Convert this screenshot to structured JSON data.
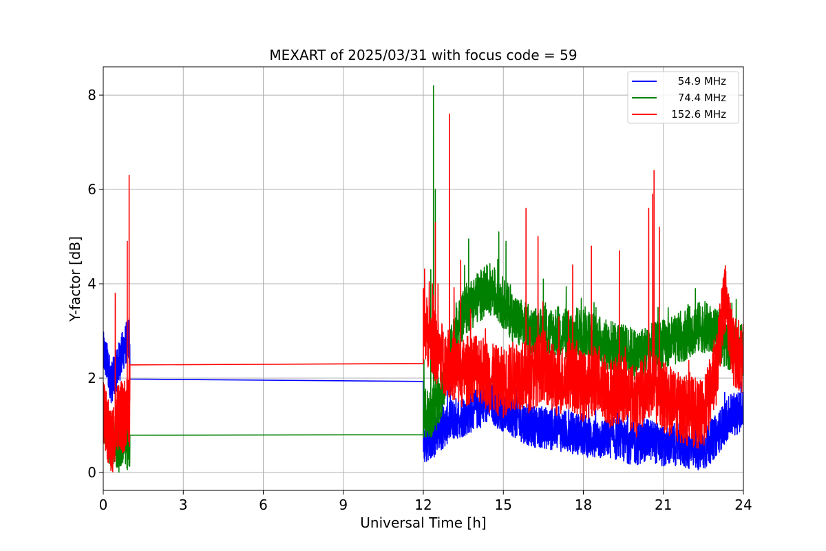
{
  "chart_data": {
    "type": "line",
    "title": "MEXART of 2025/03/31 with focus code = 59",
    "xlabel": "Universal Time [h]",
    "ylabel": "Y-factor [dB]",
    "xlim": [
      0,
      24
    ],
    "ylim": [
      -0.38,
      8.6
    ],
    "xticks": [
      0,
      3,
      6,
      9,
      12,
      15,
      18,
      21,
      24
    ],
    "yticks": [
      0,
      2,
      4,
      6,
      8
    ],
    "grid": true,
    "legend_position": "top-right",
    "series": [
      {
        "name": "54.9 MHz",
        "color": "#0000ff",
        "points": [
          [
            0.0,
            2.55
          ],
          [
            0.15,
            2.3
          ],
          [
            0.3,
            1.9
          ],
          [
            0.45,
            2.1
          ],
          [
            0.6,
            2.35
          ],
          [
            0.75,
            2.6
          ],
          [
            0.9,
            2.8
          ],
          [
            0.99,
            2.9
          ],
          [
            1.0,
            1.98
          ],
          [
            12.0,
            1.93
          ],
          [
            12.0,
            0.6
          ],
          [
            12.5,
            0.8
          ],
          [
            13.0,
            1.1
          ],
          [
            13.5,
            1.2
          ],
          [
            14.0,
            1.35
          ],
          [
            14.5,
            1.5
          ],
          [
            15.0,
            1.3
          ],
          [
            15.5,
            1.15
          ],
          [
            16.0,
            1.0
          ],
          [
            16.5,
            0.95
          ],
          [
            17.0,
            0.9
          ],
          [
            17.5,
            0.85
          ],
          [
            18.0,
            0.8
          ],
          [
            18.5,
            0.7
          ],
          [
            19.0,
            0.75
          ],
          [
            19.5,
            0.65
          ],
          [
            20.0,
            0.6
          ],
          [
            20.5,
            0.7
          ],
          [
            21.0,
            0.55
          ],
          [
            21.5,
            0.6
          ],
          [
            22.0,
            0.5
          ],
          [
            22.5,
            0.45
          ],
          [
            23.0,
            0.8
          ],
          [
            23.5,
            1.2
          ],
          [
            24.0,
            1.3
          ]
        ],
        "peaks": [
          [
            12.9,
            1.8
          ],
          [
            14.4,
            2.0
          ],
          [
            15.5,
            1.8
          ],
          [
            19.3,
            1.6
          ],
          [
            23.3,
            1.7
          ]
        ]
      },
      {
        "name": "74.4 MHz",
        "color": "#008000",
        "points": [
          [
            0.0,
            1.3
          ],
          [
            0.15,
            0.9
          ],
          [
            0.3,
            0.6
          ],
          [
            0.45,
            0.7
          ],
          [
            0.6,
            0.5
          ],
          [
            0.75,
            0.75
          ],
          [
            0.9,
            0.6
          ],
          [
            0.99,
            0.5
          ],
          [
            1.0,
            0.79
          ],
          [
            12.0,
            0.8
          ],
          [
            12.0,
            1.2
          ],
          [
            12.3,
            1.3
          ],
          [
            12.6,
            1.5
          ],
          [
            13.0,
            2.5
          ],
          [
            13.5,
            3.4
          ],
          [
            14.0,
            3.7
          ],
          [
            14.5,
            3.9
          ],
          [
            15.0,
            3.6
          ],
          [
            15.5,
            3.2
          ],
          [
            16.0,
            3.0
          ],
          [
            16.5,
            2.9
          ],
          [
            17.0,
            3.0
          ],
          [
            17.5,
            2.9
          ],
          [
            18.0,
            3.0
          ],
          [
            18.5,
            2.8
          ],
          [
            19.0,
            2.7
          ],
          [
            19.5,
            2.6
          ],
          [
            20.0,
            2.5
          ],
          [
            20.5,
            2.6
          ],
          [
            21.0,
            2.7
          ],
          [
            21.5,
            2.8
          ],
          [
            22.0,
            3.0
          ],
          [
            22.5,
            3.1
          ],
          [
            23.0,
            2.9
          ],
          [
            23.5,
            2.7
          ],
          [
            24.0,
            2.6
          ]
        ],
        "peaks": [
          [
            12.38,
            8.2
          ],
          [
            12.45,
            6.0
          ],
          [
            12.28,
            4.3
          ],
          [
            13.7,
            4.95
          ],
          [
            14.83,
            5.1
          ],
          [
            15.1,
            4.9
          ],
          [
            16.5,
            4.1
          ],
          [
            18.4,
            3.6
          ],
          [
            20.8,
            3.5
          ],
          [
            22.2,
            3.9
          ]
        ]
      },
      {
        "name": "152.6 MHz",
        "color": "#ff0000",
        "points": [
          [
            0.0,
            1.2
          ],
          [
            0.15,
            0.9
          ],
          [
            0.3,
            0.6
          ],
          [
            0.45,
            1.0
          ],
          [
            0.6,
            1.3
          ],
          [
            0.75,
            1.1
          ],
          [
            0.9,
            1.4
          ],
          [
            0.99,
            1.2
          ],
          [
            1.0,
            2.28
          ],
          [
            12.0,
            2.31
          ],
          [
            12.0,
            3.2
          ],
          [
            12.3,
            2.8
          ],
          [
            12.6,
            2.5
          ],
          [
            13.0,
            2.3
          ],
          [
            13.5,
            2.1
          ],
          [
            14.0,
            2.3
          ],
          [
            14.5,
            2.0
          ],
          [
            15.0,
            1.9
          ],
          [
            15.5,
            2.1
          ],
          [
            16.0,
            2.0
          ],
          [
            16.5,
            2.3
          ],
          [
            17.0,
            1.9
          ],
          [
            17.5,
            2.1
          ],
          [
            18.0,
            1.8
          ],
          [
            18.5,
            2.0
          ],
          [
            19.0,
            1.7
          ],
          [
            19.5,
            1.8
          ],
          [
            20.0,
            1.5
          ],
          [
            20.5,
            1.9
          ],
          [
            21.0,
            1.6
          ],
          [
            21.5,
            1.4
          ],
          [
            22.0,
            1.3
          ],
          [
            22.5,
            1.2
          ],
          [
            23.0,
            2.2
          ],
          [
            23.3,
            3.8
          ],
          [
            23.6,
            2.6
          ],
          [
            24.0,
            2.4
          ]
        ],
        "peaks": [
          [
            0.45,
            3.8
          ],
          [
            0.9,
            4.9
          ],
          [
            0.97,
            6.3
          ],
          [
            12.45,
            5.3
          ],
          [
            12.55,
            4.0
          ],
          [
            12.98,
            7.6
          ],
          [
            13.4,
            4.5
          ],
          [
            15.85,
            5.6
          ],
          [
            16.3,
            5.0
          ],
          [
            17.6,
            4.4
          ],
          [
            18.3,
            4.8
          ],
          [
            19.35,
            4.7
          ],
          [
            20.45,
            5.6
          ],
          [
            20.6,
            5.9
          ],
          [
            20.65,
            6.4
          ],
          [
            20.85,
            5.2
          ],
          [
            23.3,
            4.3
          ]
        ]
      }
    ]
  }
}
